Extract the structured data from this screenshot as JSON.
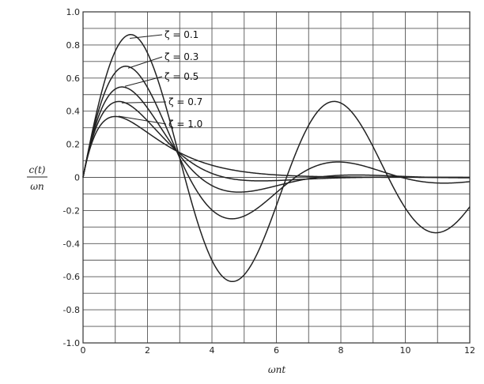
{
  "chart_data": {
    "type": "line",
    "title": "",
    "xlabel": "ωnt",
    "ylabel_top": "c(t)",
    "ylabel_bottom": "ωn",
    "xlim": [
      0,
      12
    ],
    "ylim": [
      -1.0,
      1.0
    ],
    "grid": true,
    "x_ticks": [
      0,
      2,
      4,
      6,
      8,
      10,
      12
    ],
    "x_tick_labels": [
      "0",
      "2",
      "4",
      "6",
      "8",
      "10",
      "12"
    ],
    "y_ticks": [
      1.0,
      0.8,
      0.6,
      0.4,
      0.2,
      0,
      -0.2,
      -0.4,
      -0.6,
      -0.8,
      -1.0
    ],
    "y_tick_labels": [
      "1.0",
      "0.8",
      "0.6",
      "0.4",
      "0.2",
      "0",
      "-0.2",
      "-0.4",
      "-0.6",
      "-0.8",
      "-1.0"
    ],
    "x_grid_step": 1,
    "y_grid_step": 0.1,
    "series": [
      {
        "name": "ζ = 0.1",
        "zeta": 0.1
      },
      {
        "name": "ζ = 0.3",
        "zeta": 0.3
      },
      {
        "name": "ζ = 0.5",
        "zeta": 0.5
      },
      {
        "name": "ζ = 0.7",
        "zeta": 0.7
      },
      {
        "name": "ζ = 1.0",
        "zeta": 1.0
      }
    ],
    "label_anchor_points": [
      {
        "x": 1.45,
        "y": 0.84
      },
      {
        "x": 1.4,
        "y": 0.66
      },
      {
        "x": 1.3,
        "y": 0.55
      },
      {
        "x": 1.2,
        "y": 0.45
      },
      {
        "x": 1.1,
        "y": 0.37
      }
    ]
  }
}
